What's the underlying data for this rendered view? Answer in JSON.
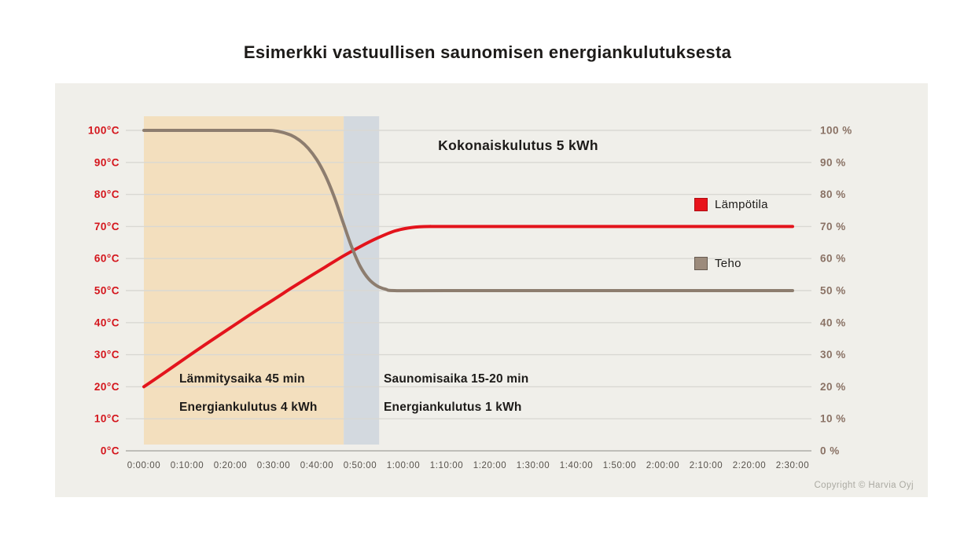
{
  "title": "Esimerkki vastuullisen saunomisen energiankulutuksesta",
  "copyright": "Copyright © Harvia Oyj",
  "chart_data": {
    "type": "line",
    "title": "Esimerkki vastuullisen saunomisen energiankulutuksesta",
    "grid": true,
    "grid_color": "#d9d8d3",
    "axis_line_color": "#bfbeb9",
    "x_label_color": "#57524c",
    "x_axis": {
      "range_minutes": [
        0,
        150
      ],
      "tick_minutes": [
        0,
        10,
        20,
        30,
        40,
        50,
        60,
        70,
        80,
        90,
        100,
        110,
        120,
        130,
        140,
        150
      ],
      "tick_labels": [
        "0:00:00",
        "0:10:00",
        "0:20:00",
        "0:30:00",
        "0:40:00",
        "0:50:00",
        "1:00:00",
        "1:10:00",
        "1:20:00",
        "1:30:00",
        "1:40:00",
        "1:50:00",
        "2:00:00",
        "2:10:00",
        "2:20:00",
        "2:30:00"
      ]
    },
    "y_left": {
      "axis_label": "temperature",
      "range": [
        0,
        100
      ],
      "color": "#d4151c"
    },
    "y_right": {
      "axis_label": "power",
      "range": [
        0,
        100
      ],
      "color": "#8a7265"
    },
    "y_ticks": [
      {
        "value": 0,
        "left": "0°C",
        "right": "0 %"
      },
      {
        "value": 10,
        "left": "10°C",
        "right": "10 %"
      },
      {
        "value": 20,
        "left": "20°C",
        "right": "20 %"
      },
      {
        "value": 30,
        "left": "30°C",
        "right": "30 %"
      },
      {
        "value": 40,
        "left": "40°C",
        "right": "40 %"
      },
      {
        "value": 50,
        "left": "50°C",
        "right": "50 %"
      },
      {
        "value": 60,
        "left": "60°C",
        "right": "60 %"
      },
      {
        "value": 70,
        "left": "70°C",
        "right": "70 %"
      },
      {
        "value": 80,
        "left": "80°C",
        "right": "80 %"
      },
      {
        "value": 90,
        "left": "90°C",
        "right": "90 %"
      },
      {
        "value": 100,
        "left": "100°C",
        "right": "100 %"
      }
    ],
    "series": [
      {
        "name": "Lämpötila",
        "axis": "left",
        "unit": "°C",
        "color": "#e3141c",
        "legend_fill": "#e8141c",
        "legend_border": "#ae0d13",
        "points": [
          [
            0,
            20
          ],
          [
            5,
            24.6
          ],
          [
            10,
            29.3
          ],
          [
            15,
            33.9
          ],
          [
            20,
            38.4
          ],
          [
            25,
            42.9
          ],
          [
            30,
            47.2
          ],
          [
            34,
            50.7
          ],
          [
            38,
            54.1
          ],
          [
            42,
            57.4
          ],
          [
            46,
            60.7
          ],
          [
            50,
            63.7
          ],
          [
            54,
            66.4
          ],
          [
            58,
            68.6
          ],
          [
            62,
            69.7
          ],
          [
            66,
            70
          ],
          [
            75,
            70
          ],
          [
            150,
            70
          ]
        ]
      },
      {
        "name": "Teho",
        "axis": "right",
        "unit": "%",
        "color": "#8d7d6f",
        "legend_fill": "#9c8b7c",
        "legend_border": "#675c52",
        "points": [
          [
            0,
            100
          ],
          [
            15,
            100
          ],
          [
            28,
            100
          ],
          [
            30,
            99.9
          ],
          [
            32,
            99.4
          ],
          [
            34,
            98.5
          ],
          [
            36,
            96.9
          ],
          [
            38,
            94.4
          ],
          [
            40,
            90.8
          ],
          [
            42,
            85.8
          ],
          [
            44,
            79.3
          ],
          [
            46,
            71.5
          ],
          [
            48,
            63.8
          ],
          [
            50,
            57.6
          ],
          [
            52,
            53.6
          ],
          [
            54,
            51.4
          ],
          [
            56,
            50.4
          ],
          [
            58,
            50
          ],
          [
            70,
            50
          ],
          [
            150,
            50
          ]
        ]
      }
    ],
    "regions": [
      {
        "name": "heating-period",
        "from_min": 0,
        "to_min": 46.2,
        "color": "#f3dfbe"
      },
      {
        "name": "sauna-period",
        "from_min": 46.2,
        "to_min": 54.4,
        "color": "#d3d9df"
      }
    ],
    "annotations": {
      "total": "Kokonaiskulutus 5 kWh",
      "heating_line1": "Lämmitysaika 45 min",
      "heating_line2": "Energiankulutus 4 kWh",
      "sauna_line1": "Saunomisaika 15-20 min",
      "sauna_line2": "Energiankulutus 1 kWh"
    },
    "legend_position": "right-inside"
  }
}
